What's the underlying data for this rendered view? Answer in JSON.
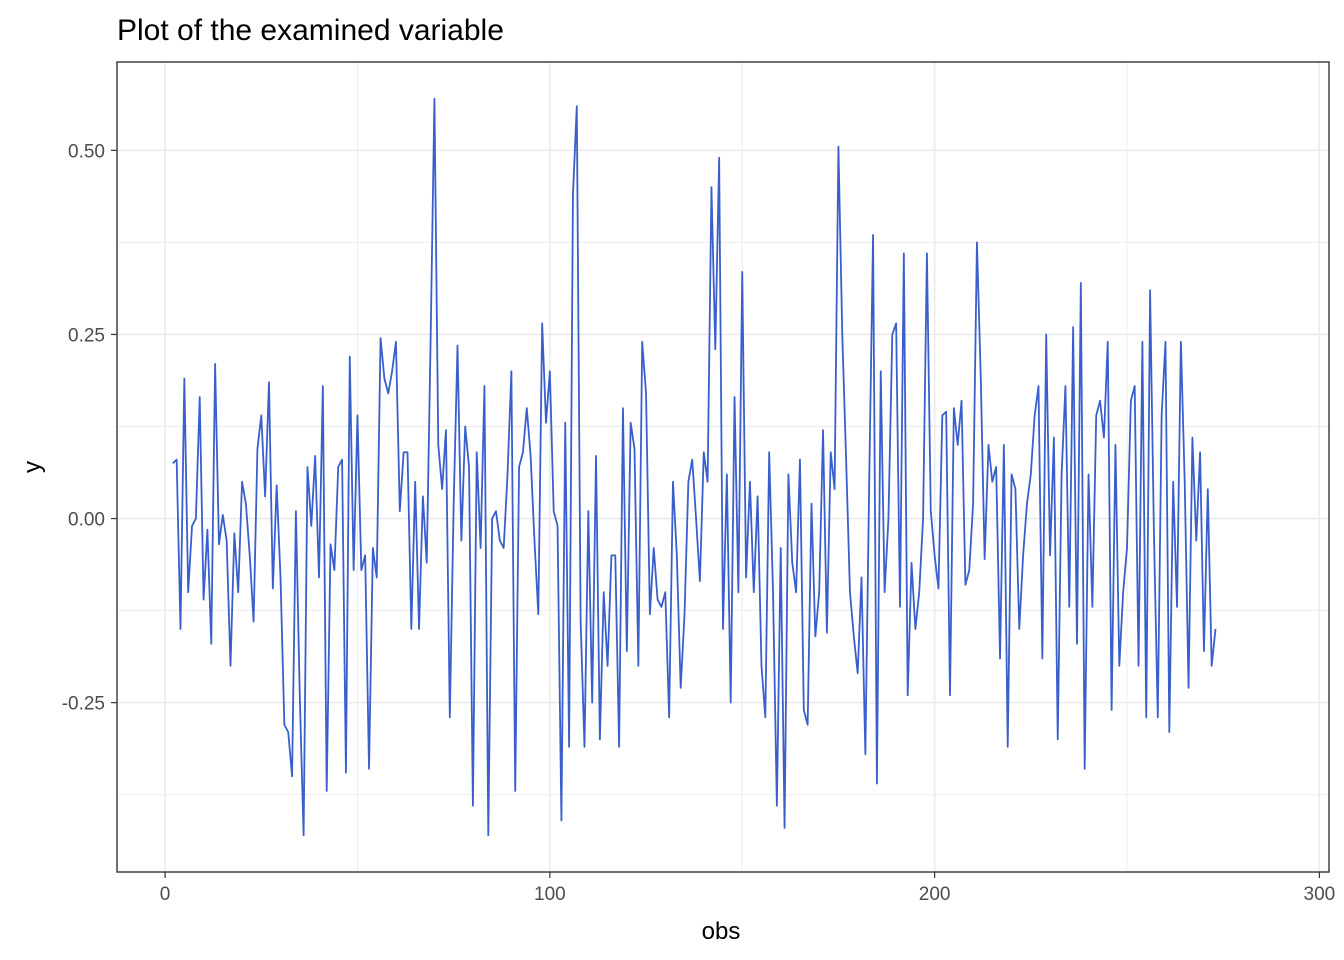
{
  "chart_data": {
    "type": "line",
    "title": "Plot of the examined variable",
    "xlabel": "obs",
    "ylabel": "y",
    "xlim": [
      -12.5,
      302.5
    ],
    "ylim": [
      -0.48,
      0.62
    ],
    "x_ticks": [
      0,
      100,
      200,
      300
    ],
    "x_tick_labels": [
      "0",
      "100",
      "200",
      "300"
    ],
    "x_minor_ticks": [
      50,
      150,
      250
    ],
    "y_ticks": [
      0.5,
      0.25,
      0.0,
      -0.25
    ],
    "y_tick_labels": [
      "0.50",
      "0.25",
      "0.00",
      "-0.25"
    ],
    "y_minor_ticks": [
      0.375,
      0.125,
      -0.125,
      -0.375
    ],
    "grid": true,
    "legend": "none",
    "colors": {
      "line": "#3a5fcd",
      "grid": "#ebebeb",
      "border": "#333333",
      "background": "#ffffff"
    },
    "series": [
      {
        "x_start": 2,
        "x_step": 1,
        "values": [
          0.075,
          0.08,
          -0.15,
          0.19,
          -0.1,
          -0.01,
          0.0,
          0.165,
          -0.11,
          -0.015,
          -0.17,
          0.21,
          -0.035,
          0.005,
          -0.03,
          -0.2,
          -0.02,
          -0.1,
          0.05,
          0.02,
          -0.05,
          -0.14,
          0.095,
          0.14,
          0.03,
          0.185,
          -0.095,
          0.045,
          -0.08,
          -0.28,
          -0.29,
          -0.35,
          0.01,
          -0.24,
          -0.43,
          0.07,
          -0.01,
          0.085,
          -0.08,
          0.18,
          -0.37,
          -0.035,
          -0.07,
          0.07,
          0.08,
          -0.345,
          0.22,
          -0.07,
          0.14,
          -0.07,
          -0.05,
          -0.34,
          -0.04,
          -0.08,
          0.245,
          0.19,
          0.17,
          0.2,
          0.24,
          0.01,
          0.09,
          0.09,
          -0.15,
          0.05,
          -0.15,
          0.03,
          -0.06,
          0.24,
          0.57,
          0.1,
          0.04,
          0.12,
          -0.27,
          0.02,
          0.235,
          -0.03,
          0.125,
          0.07,
          -0.39,
          0.09,
          -0.04,
          0.18,
          -0.43,
          0.0,
          0.01,
          -0.03,
          -0.04,
          0.06,
          0.2,
          -0.37,
          0.07,
          0.09,
          0.15,
          0.085,
          -0.03,
          -0.13,
          0.265,
          0.13,
          0.2,
          0.01,
          -0.01,
          -0.41,
          0.13,
          -0.31,
          0.44,
          0.56,
          -0.14,
          -0.31,
          0.01,
          -0.25,
          0.085,
          -0.3,
          -0.1,
          -0.2,
          -0.05,
          -0.05,
          -0.31,
          0.15,
          -0.18,
          0.13,
          0.095,
          -0.2,
          0.24,
          0.17,
          -0.13,
          -0.04,
          -0.11,
          -0.12,
          -0.1,
          -0.27,
          0.05,
          -0.05,
          -0.23,
          -0.13,
          0.05,
          0.08,
          0.0,
          -0.085,
          0.09,
          0.05,
          0.45,
          0.23,
          0.49,
          -0.15,
          0.06,
          -0.25,
          0.165,
          -0.1,
          0.335,
          -0.08,
          0.05,
          -0.1,
          0.03,
          -0.2,
          -0.27,
          0.09,
          -0.1,
          -0.39,
          -0.04,
          -0.42,
          0.06,
          -0.06,
          -0.1,
          0.08,
          -0.26,
          -0.28,
          0.02,
          -0.16,
          -0.1,
          0.12,
          -0.155,
          0.09,
          0.04,
          0.505,
          0.25,
          0.08,
          -0.1,
          -0.16,
          -0.21,
          -0.08,
          -0.32,
          0.05,
          0.385,
          -0.36,
          0.2,
          -0.1,
          0.0,
          0.25,
          0.265,
          -0.12,
          0.36,
          -0.24,
          -0.06,
          -0.15,
          -0.1,
          0.0,
          0.36,
          0.01,
          -0.05,
          -0.095,
          0.14,
          0.145,
          -0.24,
          0.15,
          0.1,
          0.16,
          -0.09,
          -0.07,
          0.02,
          0.375,
          0.19,
          -0.055,
          0.1,
          0.05,
          0.07,
          -0.19,
          0.1,
          -0.31,
          0.06,
          0.04,
          -0.15,
          -0.05,
          0.02,
          0.06,
          0.14,
          0.18,
          -0.19,
          0.25,
          -0.05,
          0.11,
          -0.3,
          0.06,
          0.18,
          -0.12,
          0.26,
          -0.17,
          0.32,
          -0.34,
          0.06,
          -0.12,
          0.14,
          0.16,
          0.11,
          0.24,
          -0.26,
          0.1,
          -0.2,
          -0.1,
          -0.04,
          0.16,
          0.18,
          -0.2,
          0.24,
          -0.27,
          0.31,
          -0.02,
          -0.27,
          0.14,
          0.24,
          -0.29,
          0.05,
          -0.12,
          0.24,
          0.05,
          -0.23,
          0.11,
          -0.03,
          0.09,
          -0.18,
          0.04,
          -0.2,
          -0.15
        ]
      }
    ]
  }
}
